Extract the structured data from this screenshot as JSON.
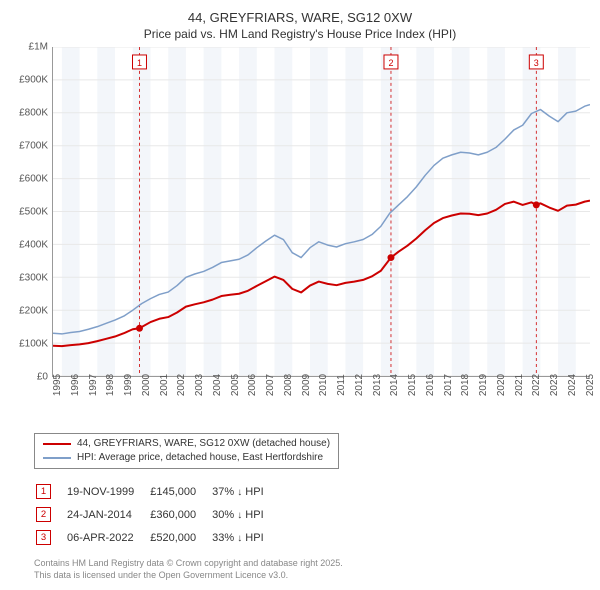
{
  "title_line1": "44, GREYFRIARS, WARE, SG12 0XW",
  "title_line2": "Price paid vs. HM Land Registry's House Price Index (HPI)",
  "chart": {
    "type": "line",
    "x_start_year": 1995,
    "x_end_year": 2025,
    "ylim": [
      0,
      1000000
    ],
    "ytick_step": 100000,
    "y_labels": [
      "£0",
      "£100K",
      "£200K",
      "£300K",
      "£400K",
      "£500K",
      "£600K",
      "£700K",
      "£800K",
      "£900K",
      "£1M"
    ],
    "x_labels": [
      "1995",
      "1996",
      "1997",
      "1998",
      "1999",
      "2000",
      "2001",
      "2002",
      "2003",
      "2004",
      "2005",
      "2006",
      "2007",
      "2008",
      "2009",
      "2010",
      "2011",
      "2012",
      "2013",
      "2014",
      "2015",
      "2016",
      "2017",
      "2018",
      "2019",
      "2020",
      "2021",
      "2022",
      "2023",
      "2024",
      "2025"
    ],
    "shaded_bands": [
      {
        "start": 1995.5,
        "end": 1996.5,
        "color": "#f3f6fa"
      },
      {
        "start": 1997.5,
        "end": 1998.5,
        "color": "#f3f6fa"
      },
      {
        "start": 1999.5,
        "end": 2000.5,
        "color": "#f3f6fa"
      },
      {
        "start": 2001.5,
        "end": 2002.5,
        "color": "#f3f6fa"
      },
      {
        "start": 2003.5,
        "end": 2004.5,
        "color": "#f3f6fa"
      },
      {
        "start": 2005.5,
        "end": 2006.5,
        "color": "#f3f6fa"
      },
      {
        "start": 2007.5,
        "end": 2008.5,
        "color": "#f3f6fa"
      },
      {
        "start": 2009.5,
        "end": 2010.5,
        "color": "#f3f6fa"
      },
      {
        "start": 2011.5,
        "end": 2012.5,
        "color": "#f3f6fa"
      },
      {
        "start": 2013.5,
        "end": 2014.5,
        "color": "#f3f6fa"
      },
      {
        "start": 2015.5,
        "end": 2016.5,
        "color": "#f3f6fa"
      },
      {
        "start": 2017.5,
        "end": 2018.5,
        "color": "#f3f6fa"
      },
      {
        "start": 2019.5,
        "end": 2020.5,
        "color": "#f3f6fa"
      },
      {
        "start": 2021.5,
        "end": 2022.5,
        "color": "#f3f6fa"
      },
      {
        "start": 2023.5,
        "end": 2024.5,
        "color": "#f3f6fa"
      }
    ],
    "grid_color": "#e8e8e8",
    "background_color": "#ffffff",
    "series": [
      {
        "name": "hpi",
        "label": "HPI: Average price, detached house, East Hertfordshire",
        "color": "#7f9fc9",
        "line_width": 1.5,
        "points": [
          [
            1995,
            130000
          ],
          [
            1995.5,
            128000
          ],
          [
            1996,
            132000
          ],
          [
            1996.5,
            135000
          ],
          [
            1997,
            142000
          ],
          [
            1997.5,
            150000
          ],
          [
            1998,
            160000
          ],
          [
            1998.5,
            170000
          ],
          [
            1999,
            182000
          ],
          [
            1999.5,
            200000
          ],
          [
            2000,
            220000
          ],
          [
            2000.5,
            235000
          ],
          [
            2001,
            248000
          ],
          [
            2001.5,
            255000
          ],
          [
            2002,
            275000
          ],
          [
            2002.5,
            300000
          ],
          [
            2003,
            310000
          ],
          [
            2003.5,
            318000
          ],
          [
            2004,
            330000
          ],
          [
            2004.5,
            345000
          ],
          [
            2005,
            350000
          ],
          [
            2005.5,
            355000
          ],
          [
            2006,
            368000
          ],
          [
            2006.5,
            390000
          ],
          [
            2007,
            410000
          ],
          [
            2007.5,
            428000
          ],
          [
            2008,
            415000
          ],
          [
            2008.5,
            375000
          ],
          [
            2009,
            360000
          ],
          [
            2009.5,
            390000
          ],
          [
            2010,
            408000
          ],
          [
            2010.5,
            398000
          ],
          [
            2011,
            392000
          ],
          [
            2011.5,
            402000
          ],
          [
            2012,
            408000
          ],
          [
            2012.5,
            415000
          ],
          [
            2013,
            430000
          ],
          [
            2013.5,
            455000
          ],
          [
            2014,
            495000
          ],
          [
            2014.5,
            520000
          ],
          [
            2015,
            545000
          ],
          [
            2015.5,
            575000
          ],
          [
            2016,
            610000
          ],
          [
            2016.5,
            640000
          ],
          [
            2017,
            662000
          ],
          [
            2017.5,
            672000
          ],
          [
            2018,
            680000
          ],
          [
            2018.5,
            678000
          ],
          [
            2019,
            672000
          ],
          [
            2019.5,
            680000
          ],
          [
            2020,
            695000
          ],
          [
            2020.5,
            720000
          ],
          [
            2021,
            748000
          ],
          [
            2021.5,
            762000
          ],
          [
            2022,
            798000
          ],
          [
            2022.5,
            810000
          ],
          [
            2023,
            790000
          ],
          [
            2023.5,
            773000
          ],
          [
            2024,
            800000
          ],
          [
            2024.5,
            805000
          ],
          [
            2025,
            820000
          ],
          [
            2025.3,
            825000
          ]
        ]
      },
      {
        "name": "property",
        "label": "44, GREYFRIARS, WARE, SG12 0XW (detached house)",
        "color": "#cc0000",
        "line_width": 2,
        "points": [
          [
            1995,
            92000
          ],
          [
            1995.5,
            91000
          ],
          [
            1996,
            94000
          ],
          [
            1996.5,
            96000
          ],
          [
            1997,
            100000
          ],
          [
            1997.5,
            106000
          ],
          [
            1998,
            113000
          ],
          [
            1998.5,
            120000
          ],
          [
            1999,
            130000
          ],
          [
            1999.5,
            142000
          ],
          [
            1999.88,
            145000
          ],
          [
            2000.5,
            164000
          ],
          [
            2001,
            174000
          ],
          [
            2001.5,
            179000
          ],
          [
            2002,
            193000
          ],
          [
            2002.5,
            211000
          ],
          [
            2003,
            218000
          ],
          [
            2003.5,
            224000
          ],
          [
            2004,
            232000
          ],
          [
            2004.5,
            243000
          ],
          [
            2005,
            247000
          ],
          [
            2005.5,
            250000
          ],
          [
            2006,
            259000
          ],
          [
            2006.5,
            274000
          ],
          [
            2007,
            288000
          ],
          [
            2007.5,
            302000
          ],
          [
            2008,
            292000
          ],
          [
            2008.5,
            265000
          ],
          [
            2009,
            254000
          ],
          [
            2009.5,
            275000
          ],
          [
            2010,
            287000
          ],
          [
            2010.5,
            280000
          ],
          [
            2011,
            276000
          ],
          [
            2011.5,
            283000
          ],
          [
            2012,
            287000
          ],
          [
            2012.5,
            292000
          ],
          [
            2013,
            303000
          ],
          [
            2013.5,
            320000
          ],
          [
            2014.07,
            360000
          ],
          [
            2014.5,
            378000
          ],
          [
            2015,
            396000
          ],
          [
            2015.5,
            418000
          ],
          [
            2016,
            443000
          ],
          [
            2016.5,
            465000
          ],
          [
            2017,
            480000
          ],
          [
            2017.5,
            488000
          ],
          [
            2018,
            494000
          ],
          [
            2018.5,
            493000
          ],
          [
            2019,
            489000
          ],
          [
            2019.5,
            494000
          ],
          [
            2020,
            505000
          ],
          [
            2020.5,
            523000
          ],
          [
            2021,
            530000
          ],
          [
            2021.5,
            520000
          ],
          [
            2022,
            528000
          ],
          [
            2022.27,
            520000
          ],
          [
            2022.5,
            525000
          ],
          [
            2023,
            512000
          ],
          [
            2023.5,
            502000
          ],
          [
            2024,
            518000
          ],
          [
            2024.5,
            521000
          ],
          [
            2025,
            530000
          ],
          [
            2025.3,
            533000
          ]
        ]
      }
    ],
    "event_lines": [
      {
        "x": 1999.88,
        "dot_y": 145000,
        "label": "1",
        "label_color": "#cc0000",
        "line_color": "#cc0000"
      },
      {
        "x": 2014.07,
        "dot_y": 360000,
        "label": "2",
        "label_color": "#cc0000",
        "line_color": "#cc0000"
      },
      {
        "x": 2022.27,
        "dot_y": 520000,
        "label": "3",
        "label_color": "#cc0000",
        "line_color": "#cc0000"
      }
    ]
  },
  "legend": {
    "items": [
      {
        "color": "#cc0000",
        "label": "44, GREYFRIARS, WARE, SG12 0XW (detached house)"
      },
      {
        "color": "#7f9fc9",
        "label": "HPI: Average price, detached house, East Hertfordshire"
      }
    ]
  },
  "events_table": {
    "rows": [
      {
        "num": "1",
        "date": "19-NOV-1999",
        "price": "£145,000",
        "pct": "37%",
        "dir": "↓",
        "suffix": "HPI"
      },
      {
        "num": "2",
        "date": "24-JAN-2014",
        "price": "£360,000",
        "pct": "30%",
        "dir": "↓",
        "suffix": "HPI"
      },
      {
        "num": "3",
        "date": "06-APR-2022",
        "price": "£520,000",
        "pct": "33%",
        "dir": "↓",
        "suffix": "HPI"
      }
    ]
  },
  "footer": {
    "line1": "Contains HM Land Registry data © Crown copyright and database right 2025.",
    "line2": "This data is licensed under the Open Government Licence v3.0."
  }
}
